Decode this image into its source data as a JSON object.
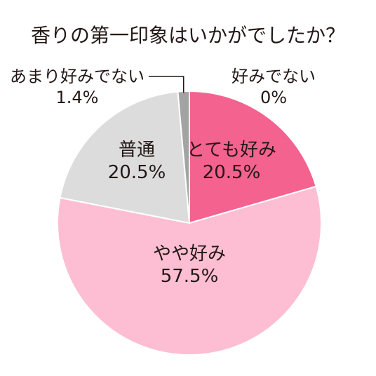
{
  "chart_data": {
    "type": "pie",
    "title": "香りの第一印象はいかがでしたか？",
    "slices": [
      {
        "label": "とても好み",
        "value": 20.5,
        "value_label": "20.5%",
        "color": "#f4628f"
      },
      {
        "label": "やや好み",
        "value": 57.5,
        "value_label": "57.5%",
        "color": "#fdbed3"
      },
      {
        "label": "普通",
        "value": 20.5,
        "value_label": "20.5%",
        "color": "#dcdcdc"
      },
      {
        "label": "あまり好みでない",
        "value": 1.4,
        "value_label": "1.4%",
        "color": "#a3a3a3"
      },
      {
        "label": "好みでない",
        "value": 0,
        "value_label": "0%",
        "color": "#6b6b6b"
      }
    ],
    "start_angle": "12 o'clock",
    "direction": "clockwise",
    "stroke_color": "#ffffff",
    "text_color": "#231815",
    "leader_line_color": "#231815"
  }
}
